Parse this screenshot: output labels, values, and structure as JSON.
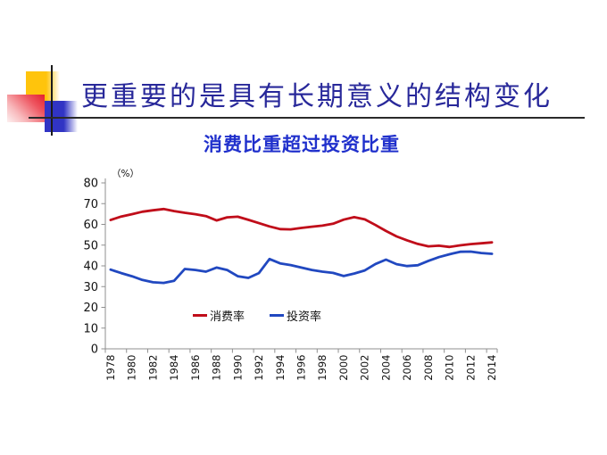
{
  "slide": {
    "title": "更重要的是具有长期意义的结构变化",
    "subtitle": "消费比重超过投资比重"
  },
  "decoration": {
    "yellow_square_color": "#FFC40C",
    "red_square_color": "#E4202D",
    "blue_square_color": "#3134C4",
    "line_color": "#1b1b1b"
  },
  "chart_data": {
    "type": "line",
    "title": "消费比重超过投资比重",
    "unit_label": "（%）",
    "xlabel": "",
    "ylabel": "",
    "ylim": [
      0,
      80
    ],
    "y_ticks": [
      0,
      10,
      20,
      30,
      40,
      50,
      60,
      70,
      80
    ],
    "x_label_interval": 2,
    "grid": false,
    "legend_position": "inside-bottom",
    "x": [
      1978,
      1979,
      1980,
      1981,
      1982,
      1983,
      1984,
      1985,
      1986,
      1987,
      1988,
      1989,
      1990,
      1991,
      1992,
      1993,
      1994,
      1995,
      1996,
      1997,
      1998,
      1999,
      2000,
      2001,
      2002,
      2003,
      2004,
      2005,
      2006,
      2007,
      2008,
      2009,
      2010,
      2011,
      2012,
      2013,
      2014
    ],
    "series": [
      {
        "name": "消费率",
        "color": "#C00D1A",
        "values": [
          62.1,
          63.8,
          64.9,
          66.1,
          66.8,
          67.4,
          66.4,
          65.6,
          64.9,
          64.0,
          61.9,
          63.4,
          63.7,
          62.2,
          60.6,
          59.0,
          57.7,
          57.6,
          58.3,
          58.9,
          59.4,
          60.3,
          62.3,
          63.5,
          62.4,
          59.7,
          56.8,
          54.2,
          52.3,
          50.6,
          49.4,
          49.7,
          49.1,
          49.9,
          50.5,
          50.9,
          51.3
        ]
      },
      {
        "name": "投资率",
        "color": "#2148C0",
        "values": [
          38.2,
          36.5,
          35.0,
          33.2,
          32.1,
          31.8,
          32.8,
          38.5,
          38.0,
          37.2,
          39.2,
          38.0,
          35.0,
          34.2,
          36.5,
          43.3,
          41.2,
          40.4,
          39.2,
          38.0,
          37.2,
          36.6,
          35.1,
          36.3,
          37.8,
          40.9,
          43.0,
          40.8,
          39.9,
          40.3,
          42.4,
          44.2,
          45.6,
          46.8,
          46.9,
          46.2,
          45.8
        ]
      }
    ]
  }
}
